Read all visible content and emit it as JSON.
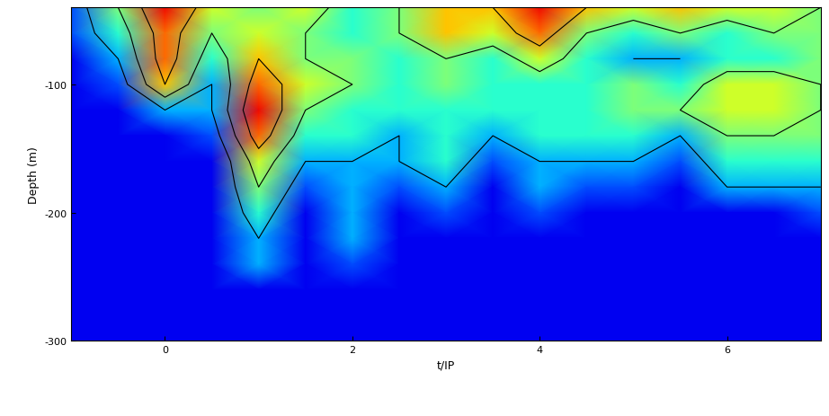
{
  "chart_data": {
    "type": "heatmap",
    "xlabel": "t/IP",
    "ylabel": "Depth (m)",
    "xlim": [
      -1,
      7
    ],
    "ylim": [
      -300,
      -40
    ],
    "xticks": [
      0,
      2,
      4,
      6
    ],
    "yticks": [
      -100,
      -200,
      -300
    ],
    "x": [
      -1,
      -0.5,
      0,
      0.5,
      1,
      1.5,
      2,
      2.5,
      3,
      3.5,
      4,
      4.5,
      5,
      5.5,
      6,
      6.5,
      7
    ],
    "depth": [
      -40,
      -60,
      -80,
      -100,
      -120,
      -140,
      -160,
      -180,
      -200,
      -220,
      -240,
      -260,
      -280,
      -300
    ],
    "zlim": [
      0,
      10
    ],
    "levels": [
      3,
      5,
      7,
      9
    ],
    "cells": [
      [
        2,
        5,
        9,
        6,
        5,
        6,
        4,
        5,
        7,
        7,
        9,
        7,
        6,
        7,
        6,
        6,
        5
      ],
      [
        2,
        4,
        8,
        5,
        6,
        5,
        4,
        5,
        7,
        6,
        8,
        5,
        4,
        5,
        4,
        5,
        5
      ],
      [
        1,
        3,
        8,
        4,
        7,
        5,
        5,
        4,
        5,
        4,
        6,
        4,
        3,
        3,
        4,
        4,
        5
      ],
      [
        1,
        2,
        7,
        3,
        8,
        6,
        5,
        4,
        5,
        4,
        4,
        4,
        5,
        4,
        6,
        6,
        5
      ],
      [
        1,
        1,
        3,
        3,
        9,
        5,
        4,
        4,
        4,
        4,
        4,
        4,
        5,
        5,
        6,
        6,
        5
      ],
      [
        1,
        1,
        1,
        2,
        8,
        4,
        4,
        3,
        4,
        3,
        4,
        4,
        4,
        3,
        5,
        5,
        5
      ],
      [
        1,
        1,
        1,
        1,
        6,
        3,
        3,
        3,
        4,
        2,
        3,
        3,
        3,
        2,
        4,
        4,
        4
      ],
      [
        1,
        1,
        1,
        1,
        5,
        2,
        3,
        2,
        3,
        1,
        3,
        2,
        2,
        1,
        3,
        3,
        3
      ],
      [
        1,
        1,
        1,
        1,
        4,
        1,
        3,
        1,
        2,
        1,
        2,
        1,
        1,
        1,
        1,
        1,
        2
      ],
      [
        1,
        1,
        1,
        1,
        3,
        1,
        3,
        1,
        1,
        1,
        1,
        1,
        1,
        1,
        1,
        1,
        1
      ],
      [
        1,
        1,
        1,
        1,
        3,
        1,
        2,
        1,
        1,
        1,
        1,
        1,
        1,
        1,
        1,
        1,
        1
      ],
      [
        1,
        1,
        1,
        1,
        1,
        1,
        1,
        1,
        1,
        1,
        1,
        1,
        1,
        1,
        1,
        1,
        1
      ],
      [
        1,
        1,
        1,
        1,
        1,
        1,
        1,
        1,
        1,
        1,
        1,
        1,
        1,
        1,
        1,
        1,
        1
      ],
      [
        1,
        1,
        1,
        1,
        1,
        1,
        1,
        1,
        1,
        1,
        1,
        1,
        1,
        1,
        1,
        1,
        1
      ]
    ]
  }
}
